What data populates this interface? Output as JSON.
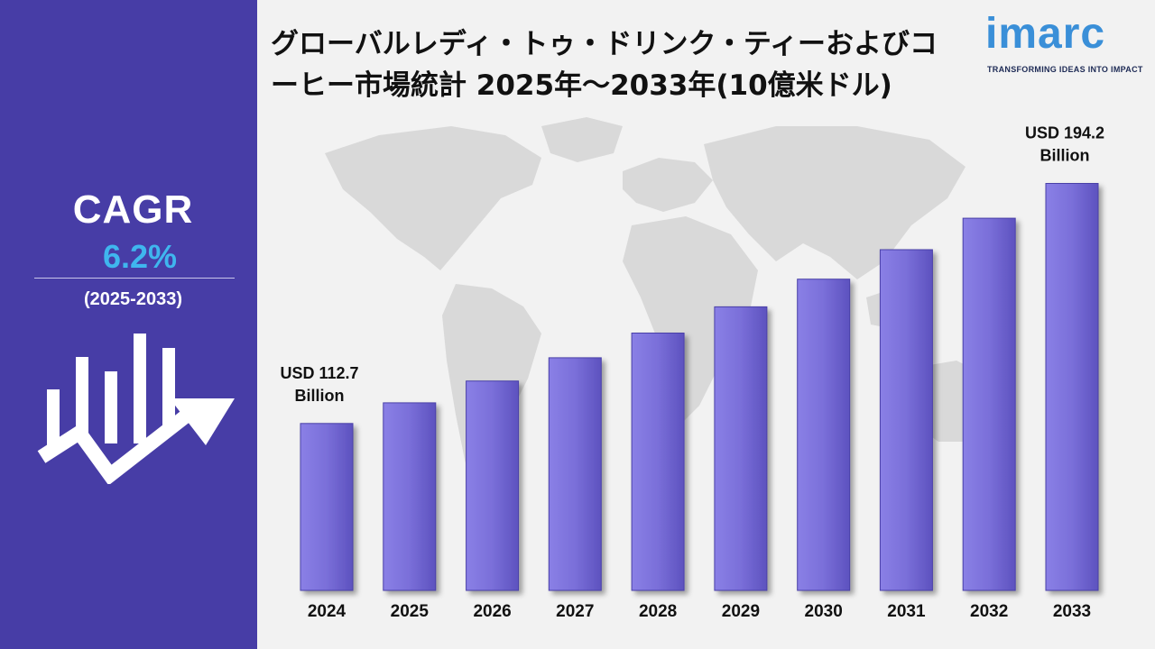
{
  "title": "グローバルレディ・トゥ・ドリンク・ティーおよびコーヒー市場統計 2025年～2033年(10億米ドル)",
  "logo": {
    "word": "imarc",
    "tagline": "TRANSFORMING IDEAS INTO IMPACT"
  },
  "sidebar": {
    "cagr_label": "CAGR",
    "cagr_value": "6.2%",
    "period": "(2025-2033)"
  },
  "colors": {
    "sidebar": "#473da6",
    "bar": "#7a6fd9",
    "accent": "#3fb6ee",
    "map": "#d6d6d6"
  },
  "chart_data": {
    "type": "bar",
    "title": "グローバルレディ・トゥ・ドリンク・ティーおよびコーヒー市場統計 2025年～2033年(10億米ドル)",
    "categories": [
      "2024",
      "2025",
      "2026",
      "2027",
      "2028",
      "2029",
      "2030",
      "2031",
      "2032",
      "2033"
    ],
    "values": [
      112.7,
      119.7,
      127.1,
      135.0,
      143.4,
      152.3,
      161.7,
      171.7,
      182.4,
      194.2
    ],
    "annotations": [
      {
        "category": "2024",
        "line1": "USD 112.7",
        "line2": "Billion"
      },
      {
        "category": "2033",
        "line1": "USD 194.2",
        "line2": "Billion"
      }
    ],
    "ylim": [
      56,
      206
    ],
    "grid": false,
    "legend": "none"
  }
}
